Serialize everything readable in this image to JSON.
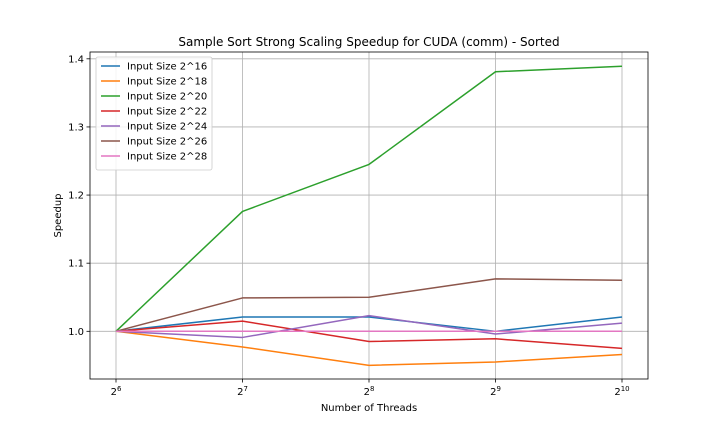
{
  "chart_data": {
    "type": "line",
    "title": "Sample Sort Strong Scaling Speedup for CUDA (comm) - Sorted",
    "xlabel": "Number of Threads",
    "ylabel": "Speedup",
    "x_scale": "log2",
    "x": [
      64,
      128,
      256,
      512,
      1024
    ],
    "x_tick_labels": [
      {
        "base": "2",
        "exp": "6"
      },
      {
        "base": "2",
        "exp": "7"
      },
      {
        "base": "2",
        "exp": "8"
      },
      {
        "base": "2",
        "exp": "9"
      },
      {
        "base": "2",
        "exp": "10"
      }
    ],
    "ylim": [
      0.93,
      1.41
    ],
    "y_ticks": [
      1.0,
      1.1,
      1.2,
      1.3,
      1.4
    ],
    "y_tick_labels": [
      "1.0",
      "1.1",
      "1.2",
      "1.3",
      "1.4"
    ],
    "grid": true,
    "legend_position": "top-left",
    "series": [
      {
        "name": "Input Size 2^16",
        "color": "#1f77b4",
        "values": [
          1.0,
          1.021,
          1.021,
          1.0,
          1.021
        ]
      },
      {
        "name": "Input Size 2^18",
        "color": "#ff7f0e",
        "values": [
          1.0,
          0.977,
          0.95,
          0.955,
          0.966
        ]
      },
      {
        "name": "Input Size 2^20",
        "color": "#2ca02c",
        "values": [
          1.0,
          1.176,
          1.245,
          1.381,
          1.389
        ]
      },
      {
        "name": "Input Size 2^22",
        "color": "#d62728",
        "values": [
          1.0,
          1.015,
          0.985,
          0.989,
          0.975
        ]
      },
      {
        "name": "Input Size 2^24",
        "color": "#9467bd",
        "values": [
          1.0,
          0.991,
          1.023,
          0.996,
          1.012
        ]
      },
      {
        "name": "Input Size 2^26",
        "color": "#8c564b",
        "values": [
          1.0,
          1.049,
          1.05,
          1.077,
          1.075
        ]
      },
      {
        "name": "Input Size 2^28",
        "color": "#e377c2",
        "values": [
          1.0,
          1.0,
          1.0,
          1.0,
          1.0
        ]
      }
    ]
  }
}
